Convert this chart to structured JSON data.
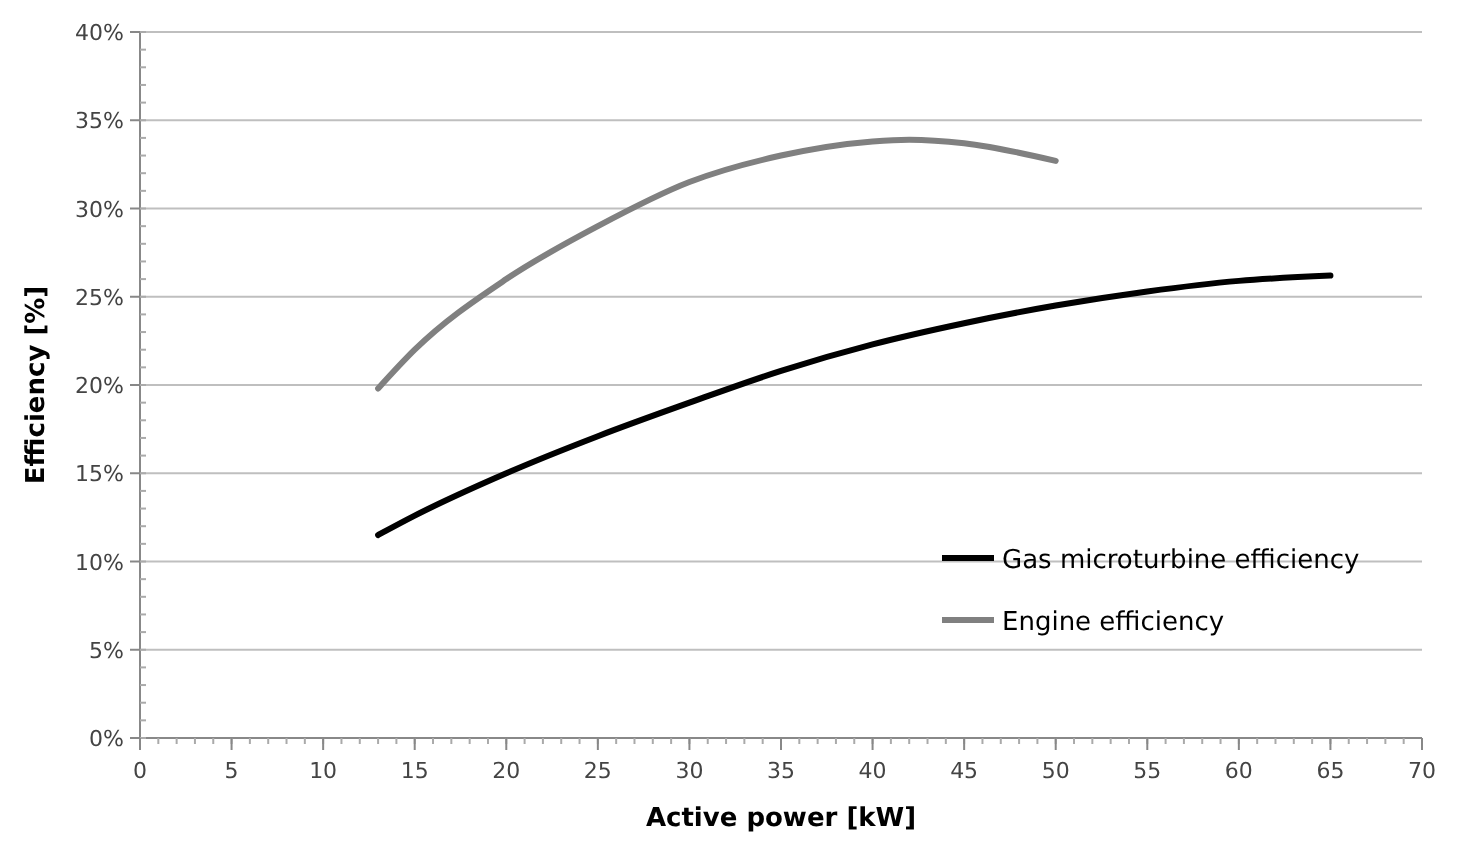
{
  "chart_data": {
    "type": "line",
    "xlabel": "Active power [kW]",
    "ylabel": "Efficiency [%]",
    "xlim": [
      0,
      70
    ],
    "xticks": [
      0,
      5,
      10,
      15,
      20,
      25,
      30,
      35,
      40,
      45,
      50,
      55,
      60,
      65,
      70
    ],
    "ylim": [
      0,
      40
    ],
    "yticks": [
      {
        "value": 0,
        "label": "0%"
      },
      {
        "value": 5,
        "label": "5%"
      },
      {
        "value": 10,
        "label": "10%"
      },
      {
        "value": 15,
        "label": "15%"
      },
      {
        "value": 20,
        "label": "20%"
      },
      {
        "value": 25,
        "label": "25%"
      },
      {
        "value": 30,
        "label": "30%"
      },
      {
        "value": 35,
        "label": "35%"
      },
      {
        "value": 40,
        "label": "40%"
      }
    ],
    "grid": "y",
    "legend": "bottom right",
    "marker": "none",
    "line_style": "solid",
    "series": [
      {
        "name": "Gas microturbine efficiency",
        "color": "#000000",
        "x": [
          13,
          15,
          20,
          25,
          30,
          35,
          40,
          45,
          50,
          55,
          60,
          65
        ],
        "values": [
          11.5,
          12.6,
          15.0,
          17.1,
          19.0,
          20.8,
          22.3,
          23.5,
          24.5,
          25.3,
          25.9,
          26.2
        ]
      },
      {
        "name": "Engine efficiency",
        "color": "#808080",
        "x": [
          13,
          15,
          20,
          25,
          30,
          35,
          40,
          42,
          45,
          50
        ],
        "values": [
          19.8,
          22.0,
          26.0,
          29.0,
          31.5,
          33.0,
          33.8,
          33.9,
          33.7,
          32.7
        ]
      }
    ]
  }
}
